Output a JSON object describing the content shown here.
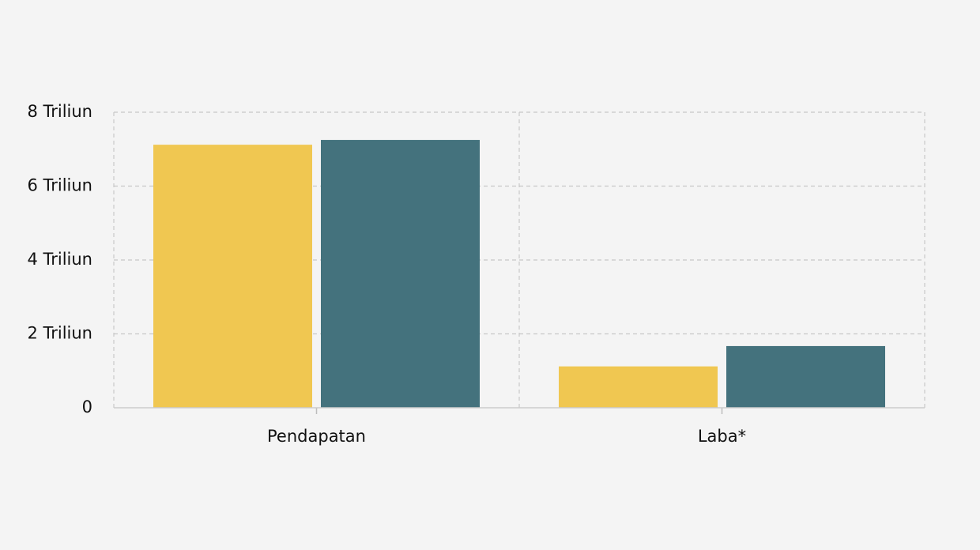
{
  "chart_data": {
    "type": "bar",
    "categories": [
      "Pendapatan",
      "Laba*"
    ],
    "series": [
      {
        "values": [
          7.12,
          1.12
        ],
        "color": "#f0c751"
      },
      {
        "values": [
          7.25,
          1.67
        ],
        "color": "#44727d"
      }
    ],
    "ylim": [
      0,
      8
    ],
    "yticks": [
      0,
      2,
      4,
      6,
      8
    ],
    "ytick_labels": [
      "0",
      "2 Triliun",
      "4 Triliun",
      "6 Triliun",
      "8 Triliun"
    ],
    "grid": true,
    "xlabel": "",
    "ylabel": ""
  },
  "colors": {
    "background": "#f4f4f4",
    "grid": "#c8c8c8",
    "axis": "#cccccc",
    "text": "#111111"
  }
}
